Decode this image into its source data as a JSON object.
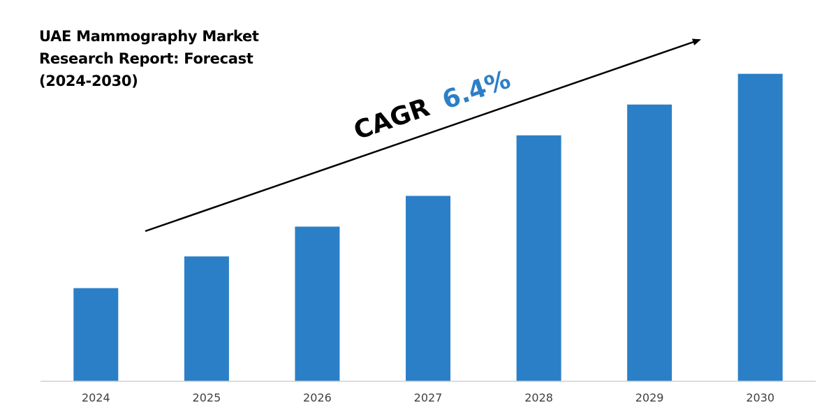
{
  "chart_data": {
    "type": "bar",
    "title": "UAE Mammography Market Research Report: Forecast (2024-2030)",
    "categories": [
      "2024",
      "2025",
      "2026",
      "2027",
      "2028",
      "2029",
      "2030"
    ],
    "values": [
      1.0,
      1.34,
      1.66,
      1.99,
      2.64,
      2.97,
      3.3
    ],
    "xlabel": "",
    "ylabel": "",
    "ylim": [
      0,
      3.8
    ],
    "grid": false,
    "legend": "none",
    "bar_color": "#2b7fc7",
    "annotation": {
      "label": "CAGR",
      "value": "6.4%",
      "label_color": "#000000",
      "value_color": "#2b7fc7"
    }
  }
}
